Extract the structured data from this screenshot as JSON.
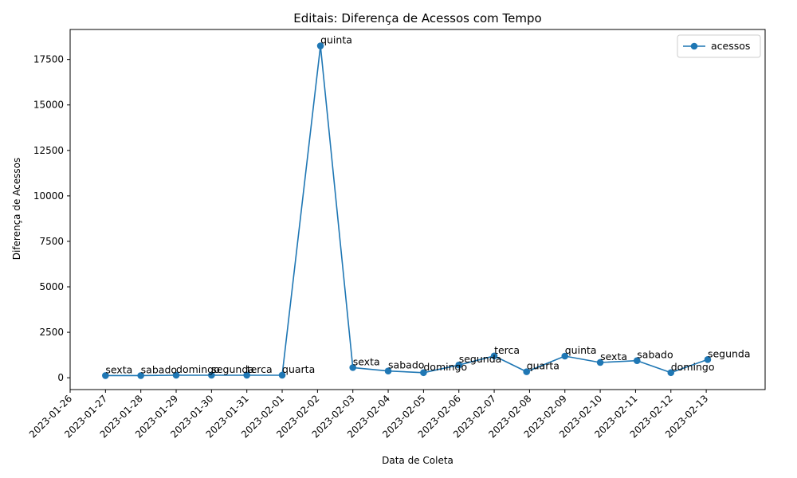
{
  "chart_data": {
    "type": "line",
    "title": "Editais: Diferença de Acessos com Tempo",
    "xlabel": "Data de Coleta",
    "ylabel": "Diferença de Acessos",
    "x_tick_labels": [
      "2023-01-26",
      "2023-01-27",
      "2023-01-28",
      "2023-01-29",
      "2023-01-30",
      "2023-01-31",
      "2023-02-01",
      "2023-02-02",
      "2023-02-03",
      "2023-02-04",
      "2023-02-05",
      "2023-02-06",
      "2023-02-07",
      "2023-02-08",
      "2023-02-09",
      "2023-02-10",
      "2023-02-11",
      "2023-02-12",
      "2023-02-13"
    ],
    "y_ticks": [
      0,
      2500,
      5000,
      7500,
      10000,
      12500,
      15000,
      17500
    ],
    "y_tick_labels": [
      "0",
      "2500",
      "5000",
      "7500",
      "10000",
      "12500",
      "15000",
      "17500"
    ],
    "ylim": [
      -650,
      19150
    ],
    "xlim": [
      "2023-01-26",
      "2023-02-14T16:00"
    ],
    "grid": false,
    "legend_position": "top-right",
    "series": [
      {
        "name": "acessos",
        "color": "#1f77b4",
        "marker": "circle",
        "points": [
          {
            "x": "2023-01-27T00:00",
            "y": 120,
            "label": "sexta"
          },
          {
            "x": "2023-01-28T00:00",
            "y": 120,
            "label": "sabado"
          },
          {
            "x": "2023-01-29T00:00",
            "y": 140,
            "label": "domingo"
          },
          {
            "x": "2023-01-30T00:00",
            "y": 140,
            "label": "segunda"
          },
          {
            "x": "2023-01-31T00:00",
            "y": 140,
            "label": "terca"
          },
          {
            "x": "2023-02-01T00:00",
            "y": 140,
            "label": "quarta"
          },
          {
            "x": "2023-02-02T02:00",
            "y": 18250,
            "label": "quinta"
          },
          {
            "x": "2023-02-03T00:00",
            "y": 560,
            "label": "sexta"
          },
          {
            "x": "2023-02-04T00:00",
            "y": 370,
            "label": "sabado"
          },
          {
            "x": "2023-02-05T00:00",
            "y": 280,
            "label": "domingo"
          },
          {
            "x": "2023-02-06T00:00",
            "y": 700,
            "label": "segunda"
          },
          {
            "x": "2023-02-07T00:00",
            "y": 1200,
            "label": "terca"
          },
          {
            "x": "2023-02-07T22:00",
            "y": 330,
            "label": "quarta"
          },
          {
            "x": "2023-02-09T00:00",
            "y": 1190,
            "label": "quinta"
          },
          {
            "x": "2023-02-10T00:00",
            "y": 840,
            "label": "sexta"
          },
          {
            "x": "2023-02-11T01:00",
            "y": 940,
            "label": "sabado"
          },
          {
            "x": "2023-02-12T00:00",
            "y": 280,
            "label": "domingo"
          },
          {
            "x": "2023-02-13T01:00",
            "y": 1000,
            "label": "segunda"
          }
        ]
      }
    ]
  }
}
